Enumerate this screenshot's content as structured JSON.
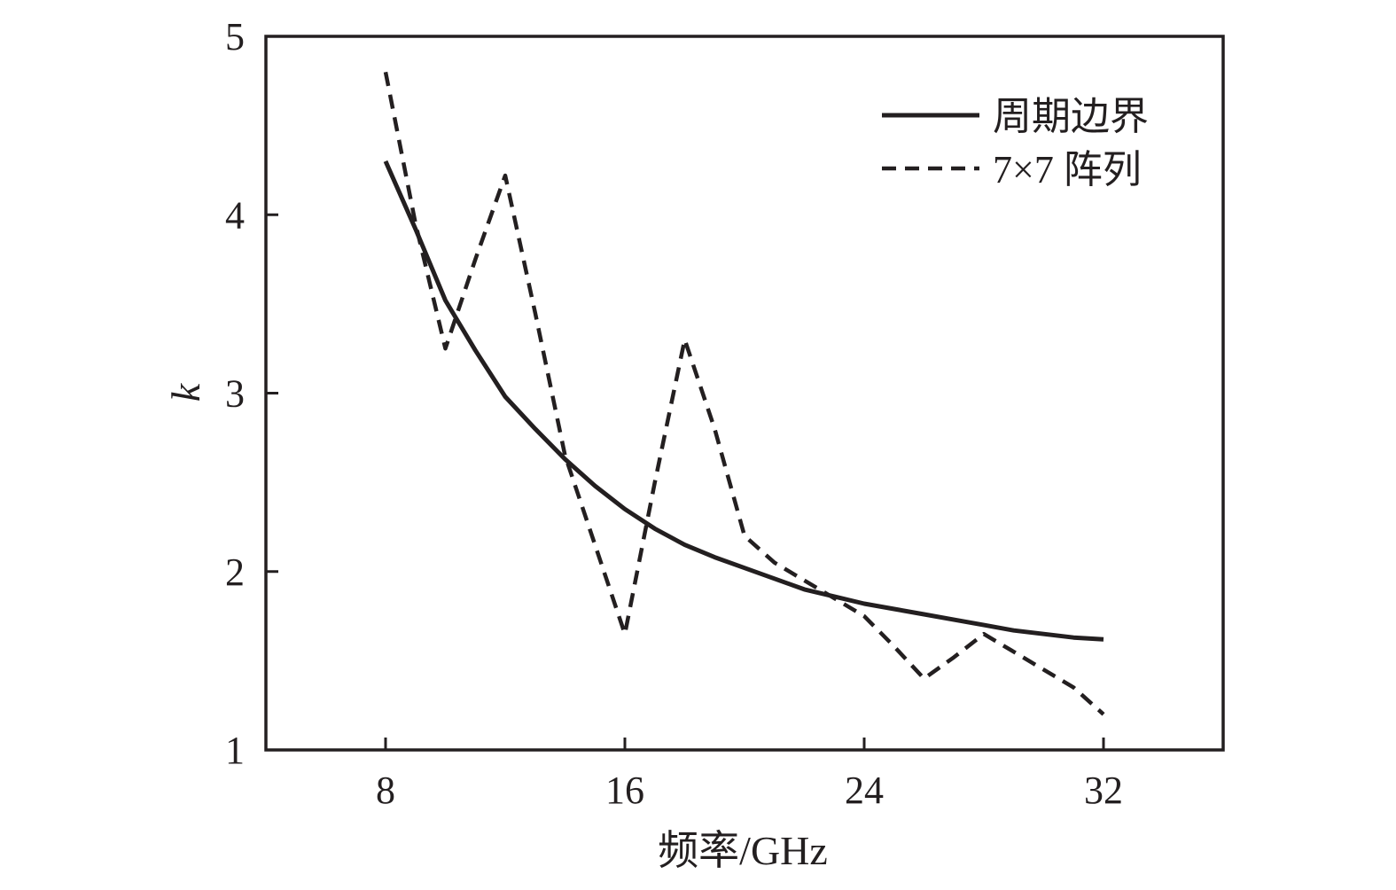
{
  "chart_data": {
    "type": "line",
    "xlabel": "频率/GHz",
    "ylabel": "k",
    "xlim": [
      4,
      36
    ],
    "ylim": [
      1,
      5
    ],
    "xticks": [
      8,
      16,
      24,
      32
    ],
    "yticks": [
      1,
      2,
      3,
      4,
      5
    ],
    "grid": false,
    "legend_position": "top-right",
    "series": [
      {
        "name": "周期边界",
        "style": "solid",
        "color": "#231f20",
        "x": [
          8,
          9,
          10,
          11,
          12,
          13,
          14,
          15,
          16,
          17,
          18,
          19,
          20,
          21,
          22,
          23,
          24,
          25,
          26,
          27,
          28,
          29,
          30,
          31,
          32
        ],
        "values": [
          4.3,
          3.92,
          3.52,
          3.24,
          2.98,
          2.8,
          2.63,
          2.48,
          2.35,
          2.24,
          2.15,
          2.08,
          2.02,
          1.96,
          1.9,
          1.86,
          1.82,
          1.79,
          1.76,
          1.73,
          1.7,
          1.67,
          1.65,
          1.63,
          1.62
        ]
      },
      {
        "name": "7×7 阵列",
        "style": "dashed",
        "color": "#231f20",
        "x": [
          8,
          9,
          10,
          11,
          12,
          13,
          14,
          15,
          16,
          17,
          18,
          19,
          20,
          21,
          22,
          23,
          24,
          25,
          26,
          27,
          28,
          29,
          30,
          31,
          32
        ],
        "values": [
          4.8,
          3.95,
          3.25,
          3.75,
          4.22,
          3.45,
          2.65,
          2.15,
          1.65,
          2.5,
          3.3,
          2.8,
          2.2,
          2.05,
          1.95,
          1.85,
          1.75,
          1.58,
          1.4,
          1.52,
          1.65,
          1.55,
          1.45,
          1.35,
          1.2
        ]
      }
    ]
  }
}
